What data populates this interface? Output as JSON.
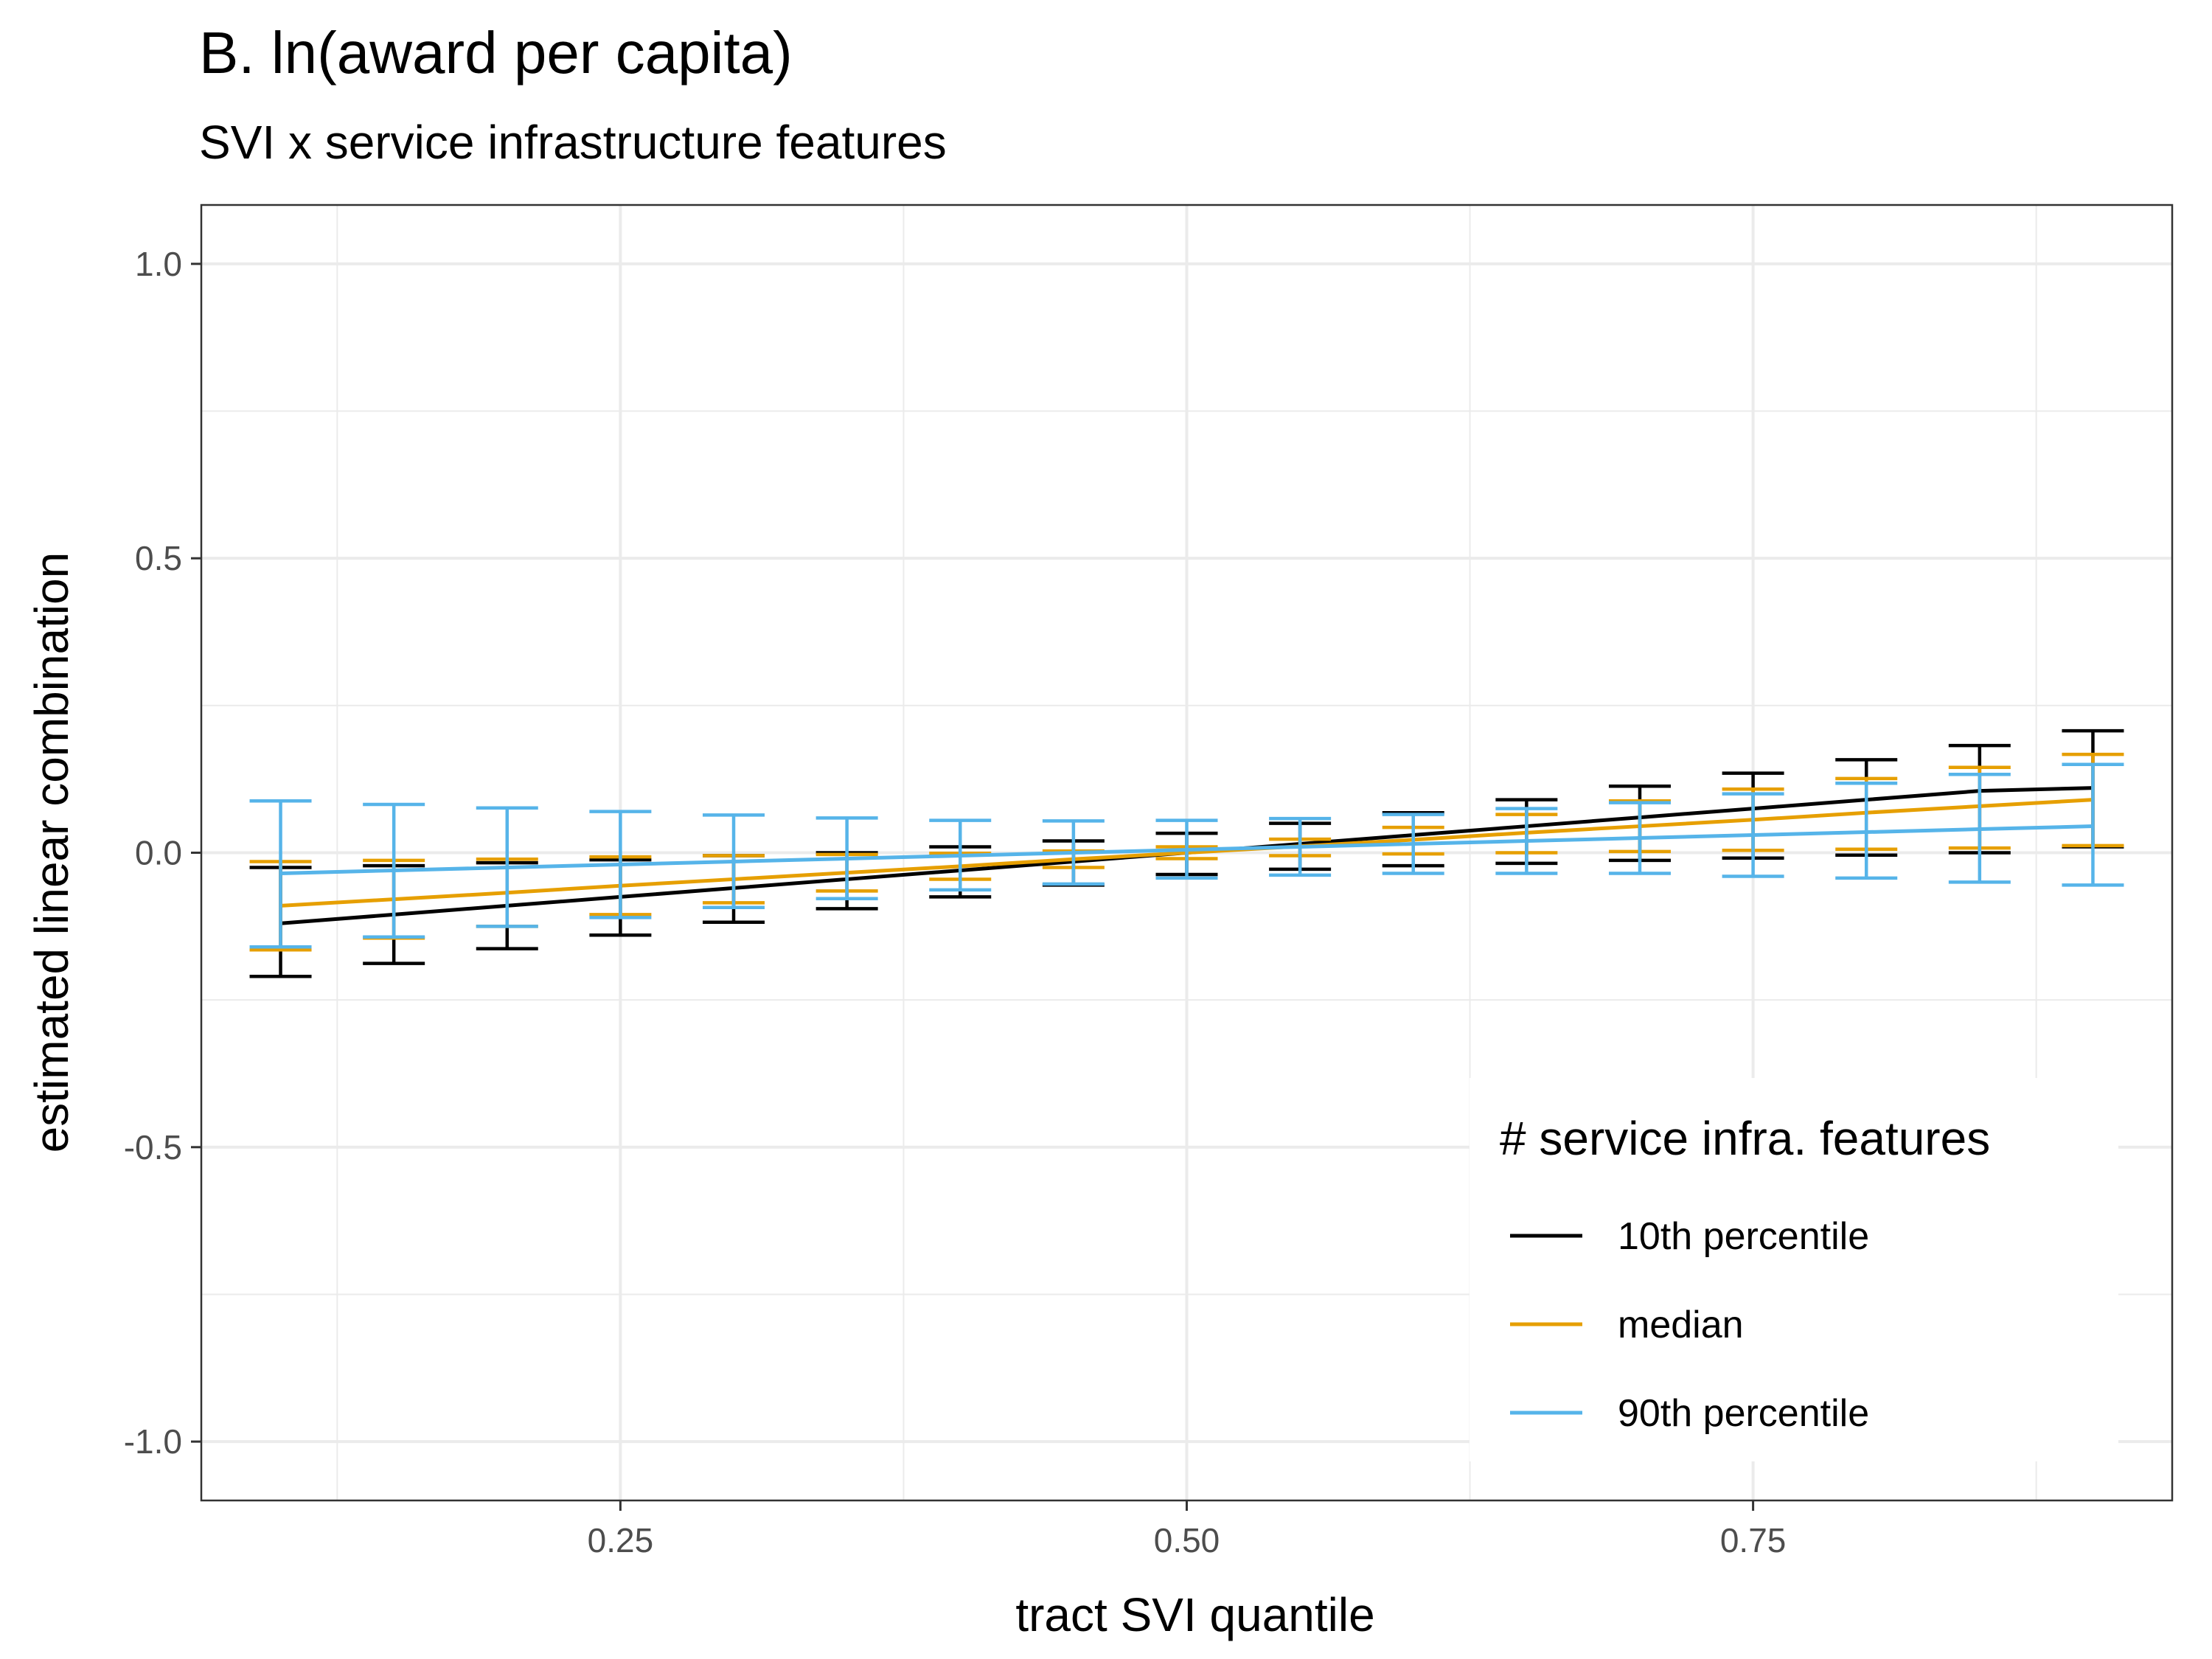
{
  "title": "B. ln(award per capita)",
  "subtitle": "SVI x service infrastructure features",
  "chart_data": {
    "type": "line",
    "xlabel": "tract SVI quantile",
    "ylabel": "estimated linear combination",
    "xlim": [
      0.065,
      0.935
    ],
    "ylim": [
      -1.1,
      1.1
    ],
    "x_ticks": [
      0.25,
      0.5,
      0.75
    ],
    "x_tick_labels": [
      "0.25",
      "0.50",
      "0.75"
    ],
    "y_ticks": [
      -1.0,
      -0.5,
      0.0,
      0.5,
      1.0
    ],
    "y_tick_labels": [
      "-1.0",
      "-0.5",
      "0.0",
      "0.5",
      "1.0"
    ],
    "grid": true,
    "legend": {
      "title": "# service infra. features",
      "position": "bottom-right"
    },
    "x": [
      0.1,
      0.15,
      0.2,
      0.25,
      0.3,
      0.35,
      0.4,
      0.45,
      0.5,
      0.55,
      0.6,
      0.65,
      0.7,
      0.75,
      0.8,
      0.85,
      0.9
    ],
    "series": [
      {
        "name": "10th percentile",
        "color": "#000000",
        "estimate": [
          -0.12,
          -0.105,
          -0.09,
          -0.075,
          -0.06,
          -0.045,
          -0.03,
          -0.015,
          0.0,
          0.015,
          0.03,
          0.045,
          0.06,
          0.075,
          0.09,
          0.105,
          0.11
        ],
        "lower": [
          -0.21,
          -0.188,
          -0.163,
          -0.14,
          -0.118,
          -0.095,
          -0.075,
          -0.055,
          -0.037,
          -0.028,
          -0.022,
          -0.018,
          -0.013,
          -0.009,
          -0.004,
          0.0,
          0.01
        ],
        "upper": [
          -0.025,
          -0.022,
          -0.017,
          -0.012,
          -0.005,
          0.0,
          0.01,
          0.02,
          0.033,
          0.05,
          0.068,
          0.09,
          0.113,
          0.135,
          0.158,
          0.182,
          0.207
        ]
      },
      {
        "name": "median",
        "color": "#E69F00",
        "estimate": [
          -0.09,
          -0.079,
          -0.068,
          -0.056,
          -0.045,
          -0.034,
          -0.023,
          -0.011,
          0.0,
          0.011,
          0.022,
          0.034,
          0.045,
          0.056,
          0.068,
          0.079,
          0.09
        ],
        "lower": [
          -0.165,
          -0.145,
          -0.125,
          -0.105,
          -0.085,
          -0.065,
          -0.045,
          -0.025,
          -0.01,
          -0.005,
          -0.002,
          0.0,
          0.002,
          0.004,
          0.006,
          0.008,
          0.012
        ],
        "upper": [
          -0.015,
          -0.013,
          -0.011,
          -0.007,
          -0.005,
          -0.003,
          -0.001,
          0.003,
          0.01,
          0.023,
          0.043,
          0.065,
          0.088,
          0.108,
          0.126,
          0.145,
          0.167
        ]
      },
      {
        "name": "90th percentile",
        "color": "#56B4E9",
        "estimate": [
          -0.035,
          -0.03,
          -0.025,
          -0.02,
          -0.015,
          -0.01,
          -0.005,
          0.0,
          0.005,
          0.01,
          0.015,
          0.02,
          0.025,
          0.03,
          0.035,
          0.04,
          0.045
        ],
        "lower": [
          -0.16,
          -0.143,
          -0.125,
          -0.11,
          -0.093,
          -0.078,
          -0.063,
          -0.053,
          -0.043,
          -0.038,
          -0.035,
          -0.035,
          -0.035,
          -0.04,
          -0.043,
          -0.05,
          -0.055
        ],
        "upper": [
          0.088,
          0.082,
          0.076,
          0.07,
          0.064,
          0.059,
          0.055,
          0.054,
          0.055,
          0.058,
          0.065,
          0.075,
          0.085,
          0.1,
          0.118,
          0.133,
          0.15
        ]
      }
    ]
  }
}
